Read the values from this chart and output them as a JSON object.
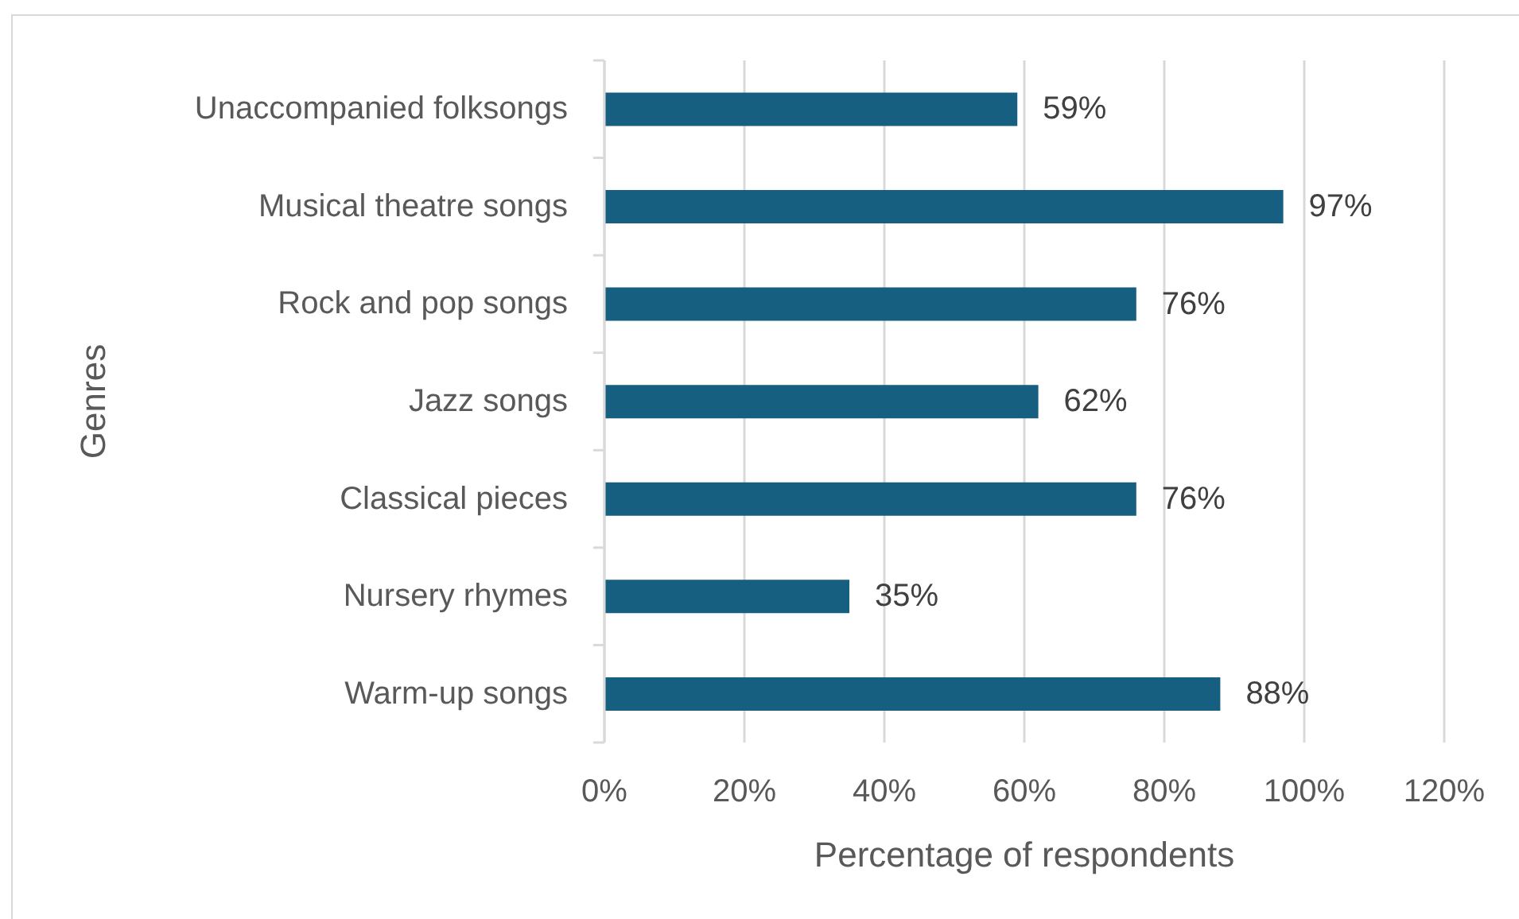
{
  "chart_data": {
    "type": "bar",
    "orientation": "horizontal",
    "categories": [
      "Unaccompanied folksongs",
      "Musical theatre songs",
      "Rock and pop songs",
      "Jazz songs",
      "Classical pieces",
      "Nursery rhymes",
      "Warm-up songs"
    ],
    "values": [
      59,
      97,
      76,
      62,
      76,
      35,
      88
    ],
    "value_labels": [
      "59%",
      "97%",
      "76%",
      "62%",
      "76%",
      "35%",
      "88%"
    ],
    "color": "#175f80",
    "xlabel": "Percentage of respondents",
    "ylabel": "Genres",
    "xlim": [
      0,
      120
    ],
    "xticks": [
      {
        "value": 0,
        "label": "0%"
      },
      {
        "value": 20,
        "label": "20%"
      },
      {
        "value": 40,
        "label": "40%"
      },
      {
        "value": 60,
        "label": "60%"
      },
      {
        "value": 80,
        "label": "80%"
      },
      {
        "value": 100,
        "label": "100%"
      },
      {
        "value": 120,
        "label": "120%"
      }
    ],
    "grid": "x"
  }
}
